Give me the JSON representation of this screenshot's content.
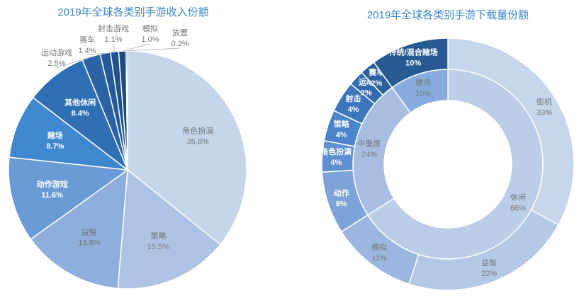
{
  "chart_data": [
    {
      "type": "pie",
      "title": "2019年全球各类别手游收入份额",
      "categories": [
        "角色扮演",
        "策略",
        "益智",
        "动作游戏",
        "赌场",
        "其他休闲",
        "运动游戏",
        "赛车",
        "射击游戏",
        "模拟",
        "放置"
      ],
      "values": [
        35.8,
        15.5,
        13.8,
        11.6,
        8.7,
        8.4,
        2.5,
        1.4,
        1.1,
        1.0,
        0.2
      ],
      "value_labels": [
        "35.8%",
        "15.5%",
        "13.8%",
        "11.6%",
        "8.7%",
        "8.4%",
        "2.5%",
        "1.4%",
        "1.1%",
        "1.0%",
        "0.2%"
      ],
      "colors": [
        "#c5d5ea",
        "#adc3e3",
        "#8eaedc",
        "#6b9bd6",
        "#3f87cf",
        "#2f6fb4",
        "#2a63a3",
        "#245a98",
        "#21528c",
        "#1e4a80",
        "#1a4070"
      ]
    },
    {
      "type": "donut",
      "title": "2019年全球各类别手游下载量份额",
      "rings": [
        {
          "categories": [
            "休闲",
            "中重度",
            "赌场"
          ],
          "values": [
            66,
            24,
            10
          ],
          "value_labels": [
            "66%",
            "24%",
            "10%"
          ],
          "colors": [
            "#bccde7",
            "#a7bee2",
            "#87abdc"
          ]
        },
        {
          "categories": [
            "街机",
            "益智",
            "模拟",
            "动作",
            "角色扮演",
            "策略",
            "射击",
            "运动",
            "赛车",
            "传统/混合赌场"
          ],
          "values": [
            33,
            22,
            11,
            8,
            4,
            4,
            4,
            2,
            2,
            10
          ],
          "value_labels": [
            "33%",
            "22%",
            "11%",
            "8%",
            "4%",
            "4%",
            "4%",
            "2%",
            "2%",
            "10%"
          ],
          "colors": [
            "#c6d6ec",
            "#b4c9e6",
            "#9bb7df",
            "#7ea3d8",
            "#5d90d0",
            "#4a84cb",
            "#3c76bd",
            "#326aae",
            "#2c5f9e",
            "#275a92"
          ]
        }
      ]
    }
  ]
}
